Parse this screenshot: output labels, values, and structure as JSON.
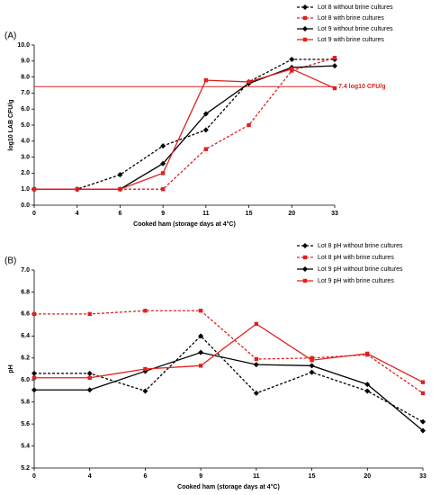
{
  "chart_data": [
    {
      "type": "line",
      "panel": "(A)",
      "x_label": "Cooked ham (storage days at 4°C)",
      "y_label": "log10 LAB CFU/g",
      "categories": [
        "0",
        "4",
        "6",
        "9",
        "11",
        "15",
        "20",
        "33"
      ],
      "ylim": [
        0,
        10
      ],
      "yticks": [
        {
          "value": 0,
          "label": "0.0"
        },
        {
          "value": 1,
          "label": "1.0"
        },
        {
          "value": 2,
          "label": "2.0"
        },
        {
          "value": 3,
          "label": "3.0"
        },
        {
          "value": 4,
          "label": "4.0"
        },
        {
          "value": 5,
          "label": "5.0"
        },
        {
          "value": 6,
          "label": "6.0"
        },
        {
          "value": 7,
          "label": "7.0"
        },
        {
          "value": 8,
          "label": "8.0"
        },
        {
          "value": 9,
          "label": "9.0"
        },
        {
          "value": 10,
          "label": "10.0"
        }
      ],
      "hline": {
        "value": 7.4,
        "label": "7.4 log10 CFU/g",
        "color": "#e02020"
      },
      "series": [
        {
          "name": "Lot 8 without brine cultures",
          "color": "#000000",
          "dash": true,
          "marker": "diamond",
          "values": [
            1.0,
            1.0,
            1.9,
            3.7,
            4.7,
            7.7,
            9.1,
            9.1
          ]
        },
        {
          "name": "Lot 8 with brine cultures",
          "color": "#e02020",
          "dash": true,
          "marker": "square",
          "values": [
            1.0,
            1.0,
            1.0,
            1.0,
            3.5,
            5.0,
            8.4,
            9.2
          ]
        },
        {
          "name": "Lot 9 without brine cultures",
          "color": "#000000",
          "dash": false,
          "marker": "diamond",
          "values": [
            1.0,
            1.0,
            1.0,
            2.6,
            5.7,
            7.6,
            8.6,
            8.7
          ]
        },
        {
          "name": "Lot 9 with brine cultures",
          "color": "#e02020",
          "dash": false,
          "marker": "square",
          "values": [
            1.0,
            1.0,
            1.0,
            2.0,
            7.8,
            7.7,
            8.5,
            7.3
          ]
        }
      ]
    },
    {
      "type": "line",
      "panel": "(B)",
      "x_label": "Cooked ham (storage days at 4°C)",
      "y_label": "pH",
      "categories": [
        "0",
        "4",
        "6",
        "9",
        "11",
        "15",
        "20",
        "33"
      ],
      "ylim": [
        5.2,
        7.0
      ],
      "yticks": [
        5.2,
        5.4,
        5.6,
        5.8,
        {
          "value": 6.0,
          "label": "6.0"
        },
        6.2,
        6.4,
        6.6,
        6.8,
        {
          "value": 7.0,
          "label": "7.0"
        }
      ],
      "series": [
        {
          "name": "Lot 8 pH without brine cultures",
          "color": "#000000",
          "dash": true,
          "marker": "diamond",
          "values": [
            6.06,
            6.06,
            5.9,
            6.4,
            5.88,
            6.07,
            5.9,
            5.62
          ]
        },
        {
          "name": "Lot 8 pH  with brine cultures",
          "color": "#e02020",
          "dash": true,
          "marker": "square",
          "values": [
            6.6,
            6.6,
            6.63,
            6.63,
            6.19,
            6.2,
            6.23,
            5.88
          ]
        },
        {
          "name": "Lot 9 pH without brine cultures",
          "color": "#000000",
          "dash": false,
          "marker": "diamond",
          "values": [
            5.91,
            5.91,
            6.08,
            6.25,
            6.14,
            6.13,
            5.96,
            5.54
          ]
        },
        {
          "name": "Lot 9 pH with brine cultures",
          "color": "#e02020",
          "dash": false,
          "marker": "square",
          "values": [
            6.02,
            6.02,
            6.1,
            6.13,
            6.51,
            6.18,
            6.24,
            5.98
          ]
        }
      ]
    }
  ]
}
